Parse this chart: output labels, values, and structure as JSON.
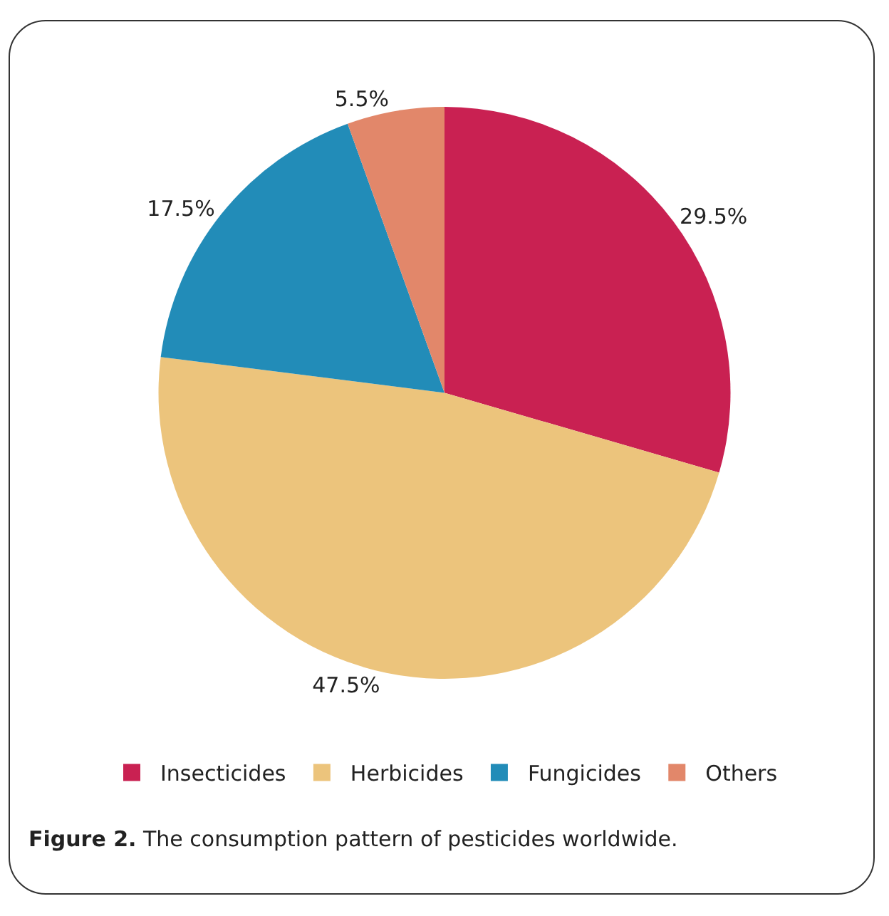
{
  "chart_data": {
    "type": "pie",
    "categories": [
      "Insecticides",
      "Herbicides",
      "Fungicides",
      "Others"
    ],
    "values": [
      29.5,
      47.5,
      17.5,
      5.5
    ],
    "colors": [
      "#c92152",
      "#ecc47c",
      "#228cb8",
      "#e2876a"
    ],
    "value_labels": [
      "29.5%",
      "47.5%",
      "17.5%",
      "5.5%"
    ],
    "legend": "bottom",
    "annotations": [
      "Figure 2. The consumption pattern of pesticides worldwide."
    ]
  }
}
